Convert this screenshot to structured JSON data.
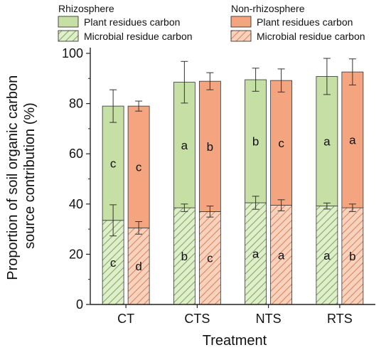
{
  "chart_data": {
    "type": "bar",
    "stacked": true,
    "xlabel": "Treatment",
    "ylabel": "Proportion of soil organic carbon source contribution (%)",
    "ylabel_lines": [
      "Proportion of soil organic carbon",
      "source contribution (%)"
    ],
    "ylim": [
      0,
      100
    ],
    "yticks": [
      0,
      20,
      40,
      60,
      80,
      100
    ],
    "categories": [
      "CT",
      "CTS",
      "NTS",
      "RTS"
    ],
    "legend": {
      "placement": "top",
      "groups": [
        {
          "title": "Rhizosphere",
          "entries": [
            {
              "label": "Plant residues carbon",
              "fill": "#c5dfa4",
              "pattern": "none"
            },
            {
              "label": "Microbial residue carbon",
              "fill": "#dfeecb",
              "pattern": "hatch"
            }
          ]
        },
        {
          "title": "Non-rhizosphere",
          "entries": [
            {
              "label": "Plant residues carbon",
              "fill": "#f4a57f",
              "pattern": "none"
            },
            {
              "label": "Microbial residue carbon",
              "fill": "#f9d2bd",
              "pattern": "hatch"
            }
          ]
        }
      ]
    },
    "series": [
      {
        "group": "Rhizosphere",
        "components": [
          {
            "name": "Microbial residue carbon",
            "values": [
              33.5,
              38.5,
              40.5,
              39.2
            ],
            "err": [
              6.2,
              1.5,
              2.6,
              1.2
            ],
            "letters": [
              "c",
              "b",
              "a",
              "a"
            ]
          },
          {
            "name": "Plant residues carbon",
            "values": [
              45.5,
              50.0,
              49.0,
              51.6
            ],
            "err": [
              6.5,
              8.3,
              4.6,
              7.2
            ],
            "letters": [
              "c",
              "a",
              "b",
              "a"
            ]
          }
        ]
      },
      {
        "group": "Non-rhizosphere",
        "components": [
          {
            "name": "Microbial residue carbon",
            "values": [
              30.5,
              37.0,
              39.5,
              38.5
            ],
            "err": [
              2.5,
              2.2,
              2.2,
              1.5
            ],
            "letters": [
              "d",
              "c",
              "a",
              "b"
            ]
          },
          {
            "name": "Plant residues carbon",
            "values": [
              48.5,
              51.9,
              49.7,
              54.1
            ],
            "err": [
              2.0,
              3.4,
              4.6,
              5.2
            ],
            "letters": [
              "c",
              "b",
              "c",
              "a"
            ]
          }
        ]
      }
    ],
    "colors": {
      "rhizo_plant": "#c5dfa4",
      "rhizo_micro": "#dfeecb",
      "rhizo_hatch": "#7fa85a",
      "nonrhizo_plant": "#f4a57f",
      "nonrhizo_micro": "#f9d2bd",
      "nonrhizo_hatch": "#d9835a"
    }
  }
}
